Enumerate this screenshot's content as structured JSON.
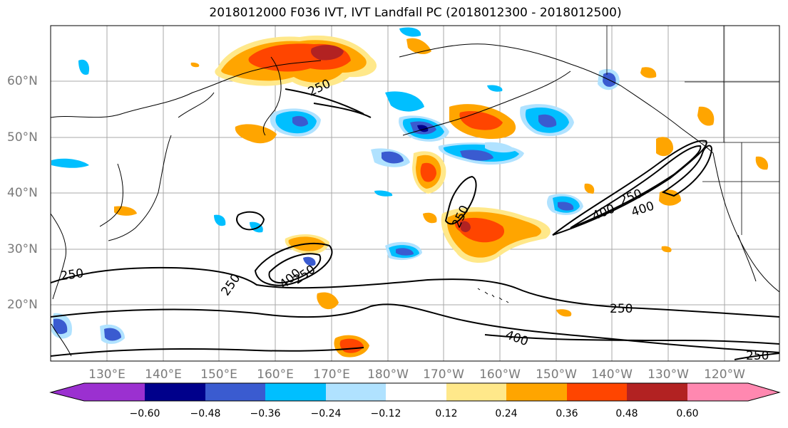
{
  "title": "2018012000 F036 IVT, IVT Landfall PC (2018012300 - 2018012500)",
  "lat_labels": [
    "60°N",
    "50°N",
    "40°N",
    "30°N",
    "20°N"
  ],
  "lon_labels": [
    "130°E",
    "140°E",
    "150°E",
    "160°E",
    "170°E",
    "180°W",
    "170°W",
    "160°W",
    "150°W",
    "140°W",
    "130°W",
    "120°W"
  ],
  "contour_labels": [
    "250",
    "250",
    "250",
    "250",
    "400",
    "250",
    "250",
    "400",
    "400",
    "250",
    "400",
    "250",
    "400",
    "250"
  ],
  "colorbar": {
    "ticks": [
      "−0.60",
      "−0.48",
      "−0.36",
      "−0.24",
      "−0.12",
      "0.12",
      "0.24",
      "0.36",
      "0.48",
      "0.60"
    ],
    "colors": [
      "#9b30d0",
      "#00008b",
      "#3a5bd0",
      "#00bfff",
      "#b0e2ff",
      "#ffffff",
      "#ffe88a",
      "#ffa500",
      "#ff4500",
      "#b22222",
      "#ff88b0"
    ]
  }
}
